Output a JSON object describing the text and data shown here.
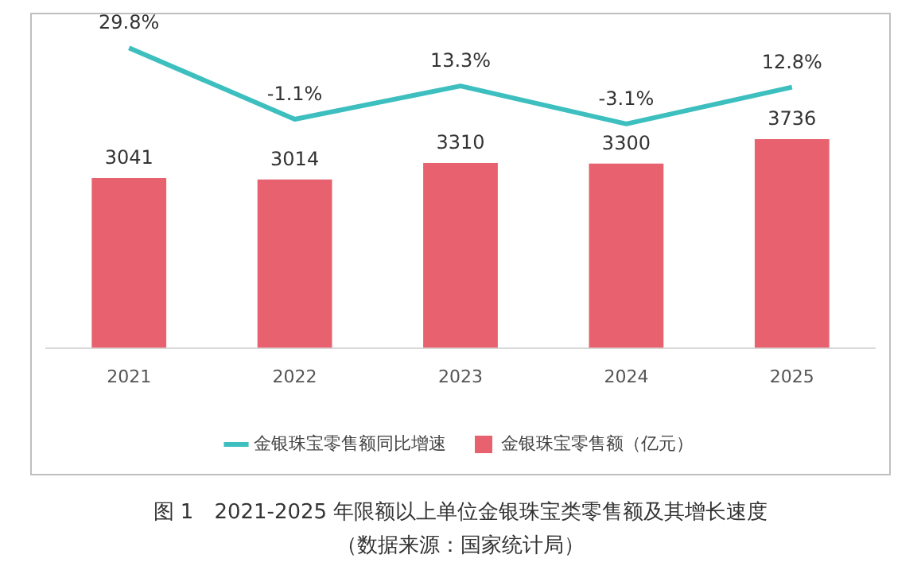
{
  "chart_data": {
    "type": "bar",
    "title": "图 1　2021-2025 年限额以上单位金银珠宝类零售额及其增长速度",
    "annotations": [
      "（数据来源：国家统计局）"
    ],
    "categories": [
      "2021",
      "2022",
      "2023",
      "2024",
      "2025"
    ],
    "series": [
      {
        "name": "金银珠宝零售额（亿元）",
        "color": "#e8616e",
        "values": [
          3041,
          3014,
          3310,
          3300,
          3736
        ],
        "value_labels": [
          "3041",
          "3014",
          "3310",
          "3300",
          "3736"
        ]
      },
      {
        "name": "金银珠宝零售额同比增速",
        "type": "line",
        "axis": "y2",
        "color": "#3dbfbf",
        "values": [
          29.8,
          -1.1,
          13.3,
          -3.1,
          12.8
        ],
        "value_labels": [
          "29.8%",
          "-1.1%",
          "13.3%",
          "-3.1%",
          "12.8%"
        ],
        "marker": "none"
      }
    ],
    "ylim": [
      0,
      6000
    ],
    "y2lim": [
      -100,
      45
    ],
    "tick_labels": "x",
    "grid": false,
    "legend": "bottom"
  }
}
